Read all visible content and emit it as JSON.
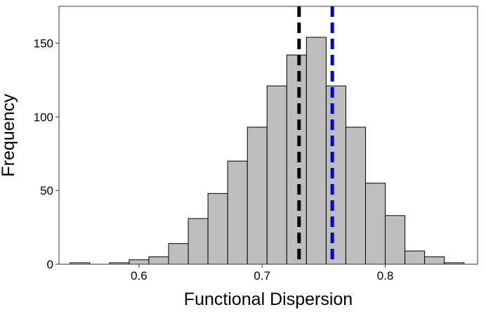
{
  "chart_data": {
    "type": "histogram",
    "xlabel": "Functional Dispersion",
    "ylabel": "Frequency",
    "xlim": [
      0.535,
      0.875
    ],
    "ylim": [
      0,
      175
    ],
    "bin_width": 0.016,
    "bins": [
      {
        "x0": 0.544,
        "x1": 0.56,
        "count": 1
      },
      {
        "x0": 0.56,
        "x1": 0.576,
        "count": 0
      },
      {
        "x0": 0.576,
        "x1": 0.592,
        "count": 1
      },
      {
        "x0": 0.592,
        "x1": 0.608,
        "count": 3
      },
      {
        "x0": 0.608,
        "x1": 0.624,
        "count": 5
      },
      {
        "x0": 0.624,
        "x1": 0.64,
        "count": 14
      },
      {
        "x0": 0.64,
        "x1": 0.656,
        "count": 31
      },
      {
        "x0": 0.656,
        "x1": 0.672,
        "count": 48
      },
      {
        "x0": 0.672,
        "x1": 0.688,
        "count": 70
      },
      {
        "x0": 0.688,
        "x1": 0.704,
        "count": 93
      },
      {
        "x0": 0.704,
        "x1": 0.72,
        "count": 121
      },
      {
        "x0": 0.72,
        "x1": 0.736,
        "count": 142
      },
      {
        "x0": 0.736,
        "x1": 0.752,
        "count": 154
      },
      {
        "x0": 0.752,
        "x1": 0.768,
        "count": 121
      },
      {
        "x0": 0.768,
        "x1": 0.784,
        "count": 93
      },
      {
        "x0": 0.784,
        "x1": 0.8,
        "count": 55
      },
      {
        "x0": 0.8,
        "x1": 0.816,
        "count": 33
      },
      {
        "x0": 0.816,
        "x1": 0.832,
        "count": 9
      },
      {
        "x0": 0.832,
        "x1": 0.848,
        "count": 5
      },
      {
        "x0": 0.848,
        "x1": 0.864,
        "count": 1
      }
    ],
    "x_ticks": [
      {
        "value": 0.6,
        "label": "0.6"
      },
      {
        "value": 0.7,
        "label": "0.7"
      },
      {
        "value": 0.8,
        "label": "0.8"
      }
    ],
    "y_ticks": [
      {
        "value": 0,
        "label": "0"
      },
      {
        "value": 50,
        "label": "50"
      },
      {
        "value": 100,
        "label": "100"
      },
      {
        "value": 150,
        "label": "150"
      }
    ],
    "reference_lines": [
      {
        "x": 0.73,
        "color": "#000000",
        "style": "dashed"
      },
      {
        "x": 0.757,
        "color": "#0000ee",
        "style": "dashed"
      }
    ],
    "grid": false,
    "colors": {
      "bar_fill": "#bebebe",
      "bar_stroke": "#000000",
      "panel_border": "#333333"
    }
  }
}
